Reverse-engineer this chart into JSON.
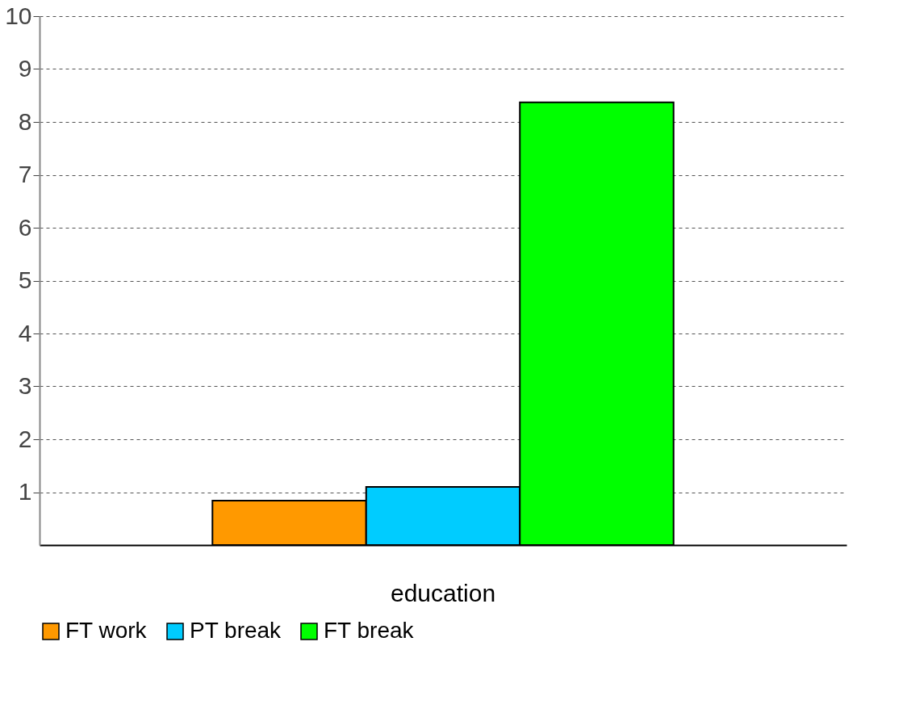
{
  "chart_data": {
    "type": "bar",
    "categories": [
      "education"
    ],
    "series": [
      {
        "name": "FT work",
        "color": "#ff9900",
        "values": [
          0.84
        ]
      },
      {
        "name": "PT break",
        "color": "#00ccff",
        "values": [
          1.1
        ]
      },
      {
        "name": "FT break",
        "color": "#00ff00",
        "values": [
          8.37
        ]
      }
    ],
    "ylim": [
      0,
      10
    ],
    "yticks": [
      1,
      2,
      3,
      4,
      5,
      6,
      7,
      8,
      9,
      10
    ],
    "grid": "y",
    "legend": "bottom"
  }
}
